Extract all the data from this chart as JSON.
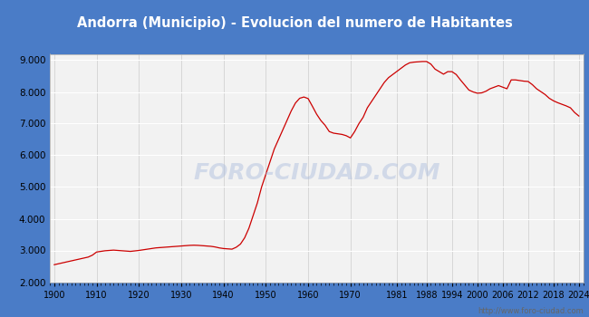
{
  "title": "Andorra (Municipio) - Evolucion del numero de Habitantes",
  "title_color": "#ffffff",
  "title_bg_color": "#4a7cc7",
  "line_color": "#cc0000",
  "fig_bg_color": "#4a7cc7",
  "plot_bg_color": "#f2f2f2",
  "outer_bg_color": "#f2f2f2",
  "watermark": "http://www.foro-ciudad.com",
  "watermark_center": "FORO-CIUDAD.COM",
  "ylim": [
    2000,
    9200
  ],
  "yticks": [
    2000,
    3000,
    4000,
    5000,
    6000,
    7000,
    8000,
    9000
  ],
  "xticks": [
    1900,
    1910,
    1920,
    1930,
    1940,
    1950,
    1960,
    1970,
    1981,
    1988,
    1994,
    2000,
    2006,
    2012,
    2018,
    2024
  ],
  "xlim": [
    1899,
    2025
  ],
  "years": [
    1900,
    1901,
    1902,
    1903,
    1904,
    1905,
    1906,
    1907,
    1908,
    1909,
    1910,
    1911,
    1912,
    1913,
    1914,
    1915,
    1916,
    1917,
    1918,
    1919,
    1920,
    1921,
    1922,
    1923,
    1924,
    1925,
    1926,
    1927,
    1928,
    1929,
    1930,
    1931,
    1932,
    1933,
    1934,
    1935,
    1936,
    1937,
    1938,
    1939,
    1940,
    1941,
    1942,
    1943,
    1944,
    1945,
    1946,
    1947,
    1948,
    1949,
    1950,
    1951,
    1952,
    1953,
    1954,
    1955,
    1956,
    1957,
    1958,
    1959,
    1960,
    1961,
    1962,
    1963,
    1964,
    1965,
    1966,
    1967,
    1968,
    1969,
    1970,
    1971,
    1972,
    1973,
    1974,
    1975,
    1976,
    1977,
    1978,
    1979,
    1980,
    1981,
    1982,
    1983,
    1984,
    1985,
    1986,
    1987,
    1988,
    1989,
    1990,
    1991,
    1992,
    1993,
    1994,
    1995,
    1996,
    1997,
    1998,
    1999,
    2000,
    2001,
    2002,
    2003,
    2004,
    2005,
    2006,
    2007,
    2008,
    2009,
    2010,
    2011,
    2012,
    2013,
    2014,
    2015,
    2016,
    2017,
    2018,
    2019,
    2020,
    2021,
    2022,
    2023,
    2024
  ],
  "population": [
    2550,
    2580,
    2610,
    2640,
    2670,
    2700,
    2730,
    2760,
    2790,
    2850,
    2950,
    2970,
    2990,
    3000,
    3010,
    3000,
    2990,
    2980,
    2970,
    2985,
    3000,
    3020,
    3040,
    3060,
    3080,
    3090,
    3100,
    3110,
    3120,
    3130,
    3140,
    3150,
    3160,
    3165,
    3160,
    3150,
    3140,
    3130,
    3110,
    3080,
    3060,
    3050,
    3040,
    3100,
    3200,
    3400,
    3700,
    4100,
    4500,
    5000,
    5400,
    5800,
    6200,
    6500,
    6800,
    7100,
    7400,
    7650,
    7800,
    7840,
    7790,
    7550,
    7300,
    7100,
    6950,
    6750,
    6700,
    6680,
    6660,
    6620,
    6550,
    6750,
    7000,
    7200,
    7500,
    7700,
    7900,
    8100,
    8300,
    8450,
    8550,
    8650,
    8750,
    8850,
    8920,
    8940,
    8950,
    8960,
    8960,
    8880,
    8720,
    8640,
    8560,
    8640,
    8640,
    8550,
    8380,
    8220,
    8060,
    8000,
    7960,
    7970,
    8020,
    8100,
    8150,
    8200,
    8150,
    8100,
    8380,
    8380,
    8360,
    8340,
    8330,
    8230,
    8100,
    8010,
    7920,
    7800,
    7720,
    7660,
    7610,
    7560,
    7500,
    7350,
    7240
  ]
}
